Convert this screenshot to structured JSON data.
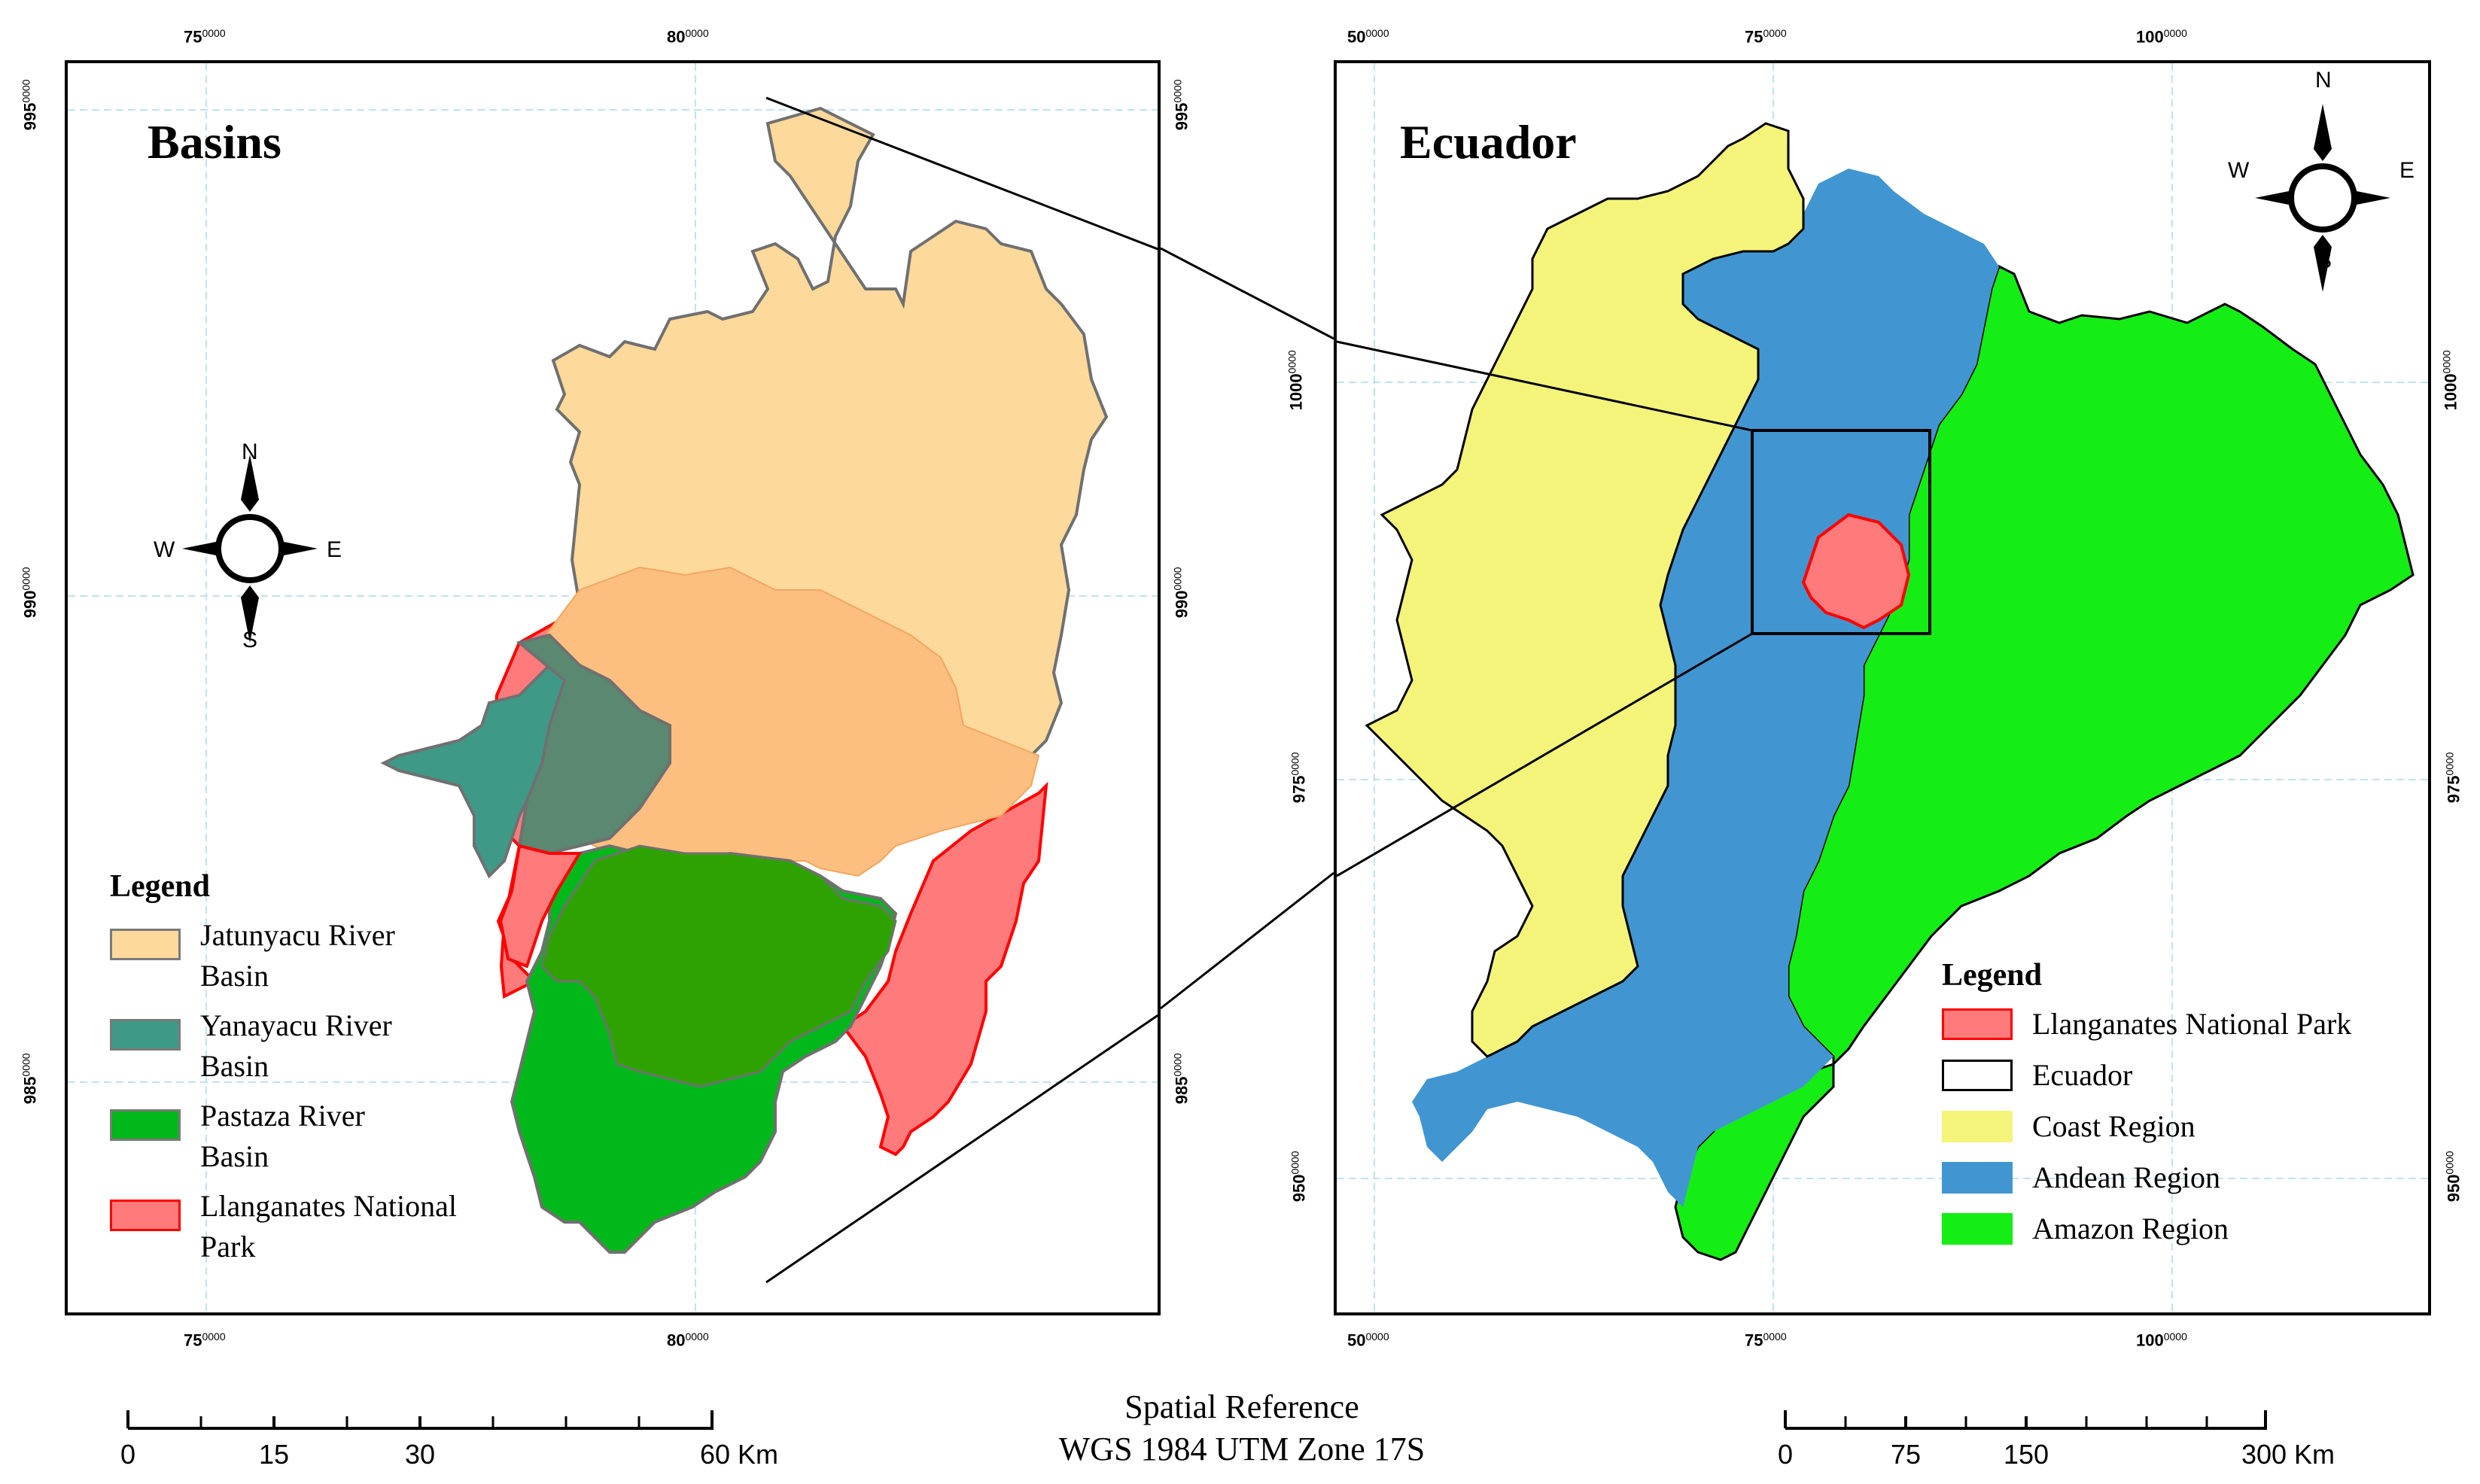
{
  "left_map": {
    "title": "Basins",
    "legend": {
      "title": "Legend",
      "items": [
        {
          "label_line1": "Jatunyacu River",
          "label_line2": "Basin",
          "color": "#fdd99b",
          "border": "#7a7a7a"
        },
        {
          "label_line1": "Yanayacu River",
          "label_line2": "Basin",
          "color": "#3e9a87",
          "border": "#7a7a7a"
        },
        {
          "label_line1": "Pastaza River",
          "label_line2": "Basin",
          "color": "#00b81a",
          "border": "#7a7a7a"
        },
        {
          "label_line1": "Llanganates National",
          "label_line2": "Park",
          "color": "#ff7b7b",
          "border": "#ff0000"
        }
      ]
    },
    "x_ticks": [
      {
        "main": "75",
        "sup": "0000"
      },
      {
        "main": "80",
        "sup": "0000"
      }
    ],
    "y_ticks": [
      {
        "main": "995",
        "sup": "0000"
      },
      {
        "main": "990",
        "sup": "0000"
      },
      {
        "main": "985",
        "sup": "0000"
      }
    ],
    "compass": {
      "n": "N",
      "s": "S",
      "e": "E",
      "w": "W"
    },
    "scale": {
      "labels": [
        "0",
        "15",
        "30",
        "60 Km"
      ]
    }
  },
  "right_map": {
    "title": "Ecuador",
    "legend": {
      "title": "Legend",
      "items": [
        {
          "label": "Llanganates National Park",
          "color": "#ff7b7b",
          "border": "#ff0000"
        },
        {
          "label": "Ecuador",
          "color": "#ffffff",
          "border": "#000000"
        },
        {
          "label": "Coast Region",
          "color": "#f4f47a",
          "border": "#f4f47a"
        },
        {
          "label": "Andean Region",
          "color": "#4196d1",
          "border": "#4196d1"
        },
        {
          "label": "Amazon Region",
          "color": "#14ee14",
          "border": "#14ee14"
        }
      ]
    },
    "x_ticks": [
      {
        "main": "50",
        "sup": "0000"
      },
      {
        "main": "75",
        "sup": "0000"
      },
      {
        "main": "100",
        "sup": "0000"
      }
    ],
    "y_ticks": [
      {
        "main": "1000",
        "sup": "0000"
      },
      {
        "main": "975",
        "sup": "0000"
      },
      {
        "main": "950",
        "sup": "0000"
      }
    ],
    "compass": {
      "n": "N",
      "s": "S",
      "e": "E",
      "w": "W"
    },
    "scale": {
      "labels": [
        "0",
        "75",
        "150",
        "300 Km"
      ]
    }
  },
  "spatial_reference": {
    "line1": "Spatial Reference",
    "line2": "WGS 1984 UTM Zone 17S"
  },
  "colors": {
    "jatunyacu": "#fdd99b",
    "overlap_orange": "#fdbf7f",
    "yanayacu": "#3e9a87",
    "yanayacu_overlap": "#5a8870",
    "pastaza": "#00b81a",
    "pastaza_overlap": "#2ea300",
    "park": "#ff7b7b",
    "park_border": "#ff0000",
    "coast": "#f4f47a",
    "andean": "#4196d1",
    "amazon": "#14ee14",
    "grid": "#bfe3f2"
  }
}
